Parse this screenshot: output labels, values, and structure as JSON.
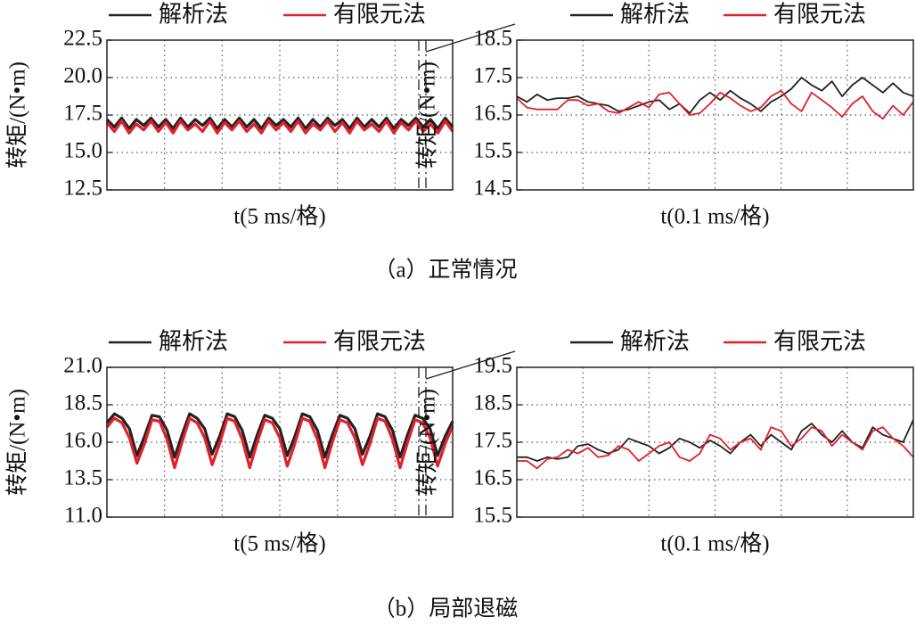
{
  "chart_data": [
    {
      "type": "line",
      "y_label": "转矩/(N•m)",
      "x_label": "t(5 ms/格)",
      "ylim": [
        12.5,
        22.5
      ],
      "yticks": [
        12.5,
        {
          "value": 15,
          "label": "15.0"
        },
        17.5,
        {
          "value": 20,
          "label": "20.0"
        },
        22.5
      ],
      "grid": true,
      "series": [
        {
          "name": "解析法",
          "color": "#222222",
          "values": [
            17.2,
            16.7,
            17.3,
            16.6,
            17.2,
            16.8,
            17.3,
            16.7,
            17.2,
            16.6,
            17.3,
            16.7,
            17.2,
            16.8,
            17.3,
            16.6,
            17.2,
            16.7,
            17.3,
            16.7,
            17.2,
            16.6,
            17.3,
            16.8,
            17.2,
            16.7,
            17.3,
            16.6,
            17.2,
            16.7,
            17.3,
            16.8,
            17.2,
            16.6,
            17.3,
            16.7,
            17.2,
            16.7,
            17.3,
            16.6,
            17.2,
            16.8,
            17.3,
            16.7,
            17.2,
            16.6,
            17.3,
            16.7
          ]
        },
        {
          "name": "有限元法",
          "color": "#e0202a",
          "values": [
            17.0,
            16.4,
            17.1,
            16.3,
            16.9,
            16.5,
            17.1,
            16.4,
            17.0,
            16.3,
            17.1,
            16.5,
            16.9,
            16.4,
            17.1,
            16.3,
            17.0,
            16.5,
            17.1,
            16.4,
            16.9,
            16.3,
            17.1,
            16.5,
            17.0,
            16.4,
            17.1,
            16.3,
            16.9,
            16.5,
            17.1,
            16.4,
            17.0,
            16.3,
            17.1,
            16.5,
            16.9,
            16.4,
            17.1,
            16.3,
            17.0,
            16.5,
            17.1,
            16.4,
            16.9,
            16.3,
            17.1,
            16.4
          ]
        }
      ]
    },
    {
      "type": "line",
      "y_label": "转矩/(N•m)",
      "x_label": "t(0.1 ms/格)",
      "ylim": [
        14.5,
        18.5
      ],
      "yticks": [
        14.5,
        15.5,
        16.5,
        17.5,
        18.5
      ],
      "grid": true,
      "series": [
        {
          "name": "解析法",
          "color": "#222222",
          "values": [
            17.0,
            16.85,
            17.05,
            16.9,
            16.95,
            16.95,
            17.0,
            16.85,
            16.8,
            16.75,
            16.6,
            16.65,
            16.75,
            16.85,
            16.9,
            16.65,
            16.8,
            16.55,
            16.9,
            17.1,
            16.9,
            17.15,
            16.95,
            16.8,
            16.6,
            16.85,
            17.0,
            17.2,
            17.5,
            17.3,
            17.15,
            17.4,
            17.0,
            17.3,
            17.5,
            17.3,
            17.1,
            17.35,
            17.1,
            17.0
          ]
        },
        {
          "name": "有限元法",
          "color": "#e0202a",
          "values": [
            16.95,
            16.7,
            16.65,
            16.65,
            16.65,
            16.9,
            16.9,
            16.75,
            16.8,
            16.6,
            16.55,
            16.7,
            16.85,
            16.7,
            17.05,
            17.1,
            16.8,
            16.5,
            16.55,
            16.8,
            17.1,
            16.95,
            16.75,
            16.6,
            16.7,
            17.0,
            17.15,
            16.8,
            16.6,
            17.1,
            16.9,
            16.7,
            16.45,
            16.8,
            17.0,
            16.6,
            16.4,
            16.75,
            16.5,
            16.85
          ]
        }
      ]
    },
    {
      "type": "line",
      "y_label": "转矩/(N•m)",
      "x_label": "t(5 ms/格)",
      "ylim": [
        11,
        21
      ],
      "yticks": [
        {
          "value": 11,
          "label": "11.0"
        },
        13.5,
        {
          "value": 16,
          "label": "16.0"
        },
        18.5,
        {
          "value": 21,
          "label": "21.0"
        }
      ],
      "grid": true,
      "series": [
        {
          "name": "解析法",
          "color": "#222222",
          "values": [
            17.3,
            17.9,
            17.6,
            16.9,
            15.1,
            16.4,
            17.8,
            17.7,
            16.8,
            15.0,
            16.5,
            17.9,
            17.6,
            16.9,
            15.2,
            16.4,
            17.9,
            17.7,
            16.8,
            15.0,
            16.5,
            17.8,
            17.6,
            16.9,
            15.1,
            16.4,
            17.9,
            17.7,
            16.8,
            15.0,
            16.5,
            17.8,
            17.6,
            16.9,
            15.2,
            16.4,
            17.9,
            17.7,
            16.8,
            15.0,
            16.5,
            17.8,
            17.6,
            16.9,
            15.1,
            16.4,
            17.4
          ]
        },
        {
          "name": "有限元法",
          "color": "#e0202a",
          "values": [
            17.0,
            17.6,
            17.3,
            16.3,
            14.6,
            15.9,
            17.5,
            17.4,
            16.2,
            14.3,
            16.0,
            17.6,
            17.3,
            16.3,
            14.5,
            15.9,
            17.6,
            17.4,
            16.2,
            14.3,
            16.0,
            17.5,
            17.3,
            16.3,
            14.4,
            15.9,
            17.6,
            17.4,
            16.2,
            14.3,
            16.0,
            17.5,
            17.3,
            16.3,
            14.5,
            15.9,
            17.6,
            17.4,
            16.2,
            14.3,
            16.0,
            17.5,
            17.3,
            16.3,
            14.4,
            15.9,
            17.1
          ]
        }
      ]
    },
    {
      "type": "line",
      "y_label": "转矩/(N•m)",
      "x_label": "t(0.1 ms/格)",
      "ylim": [
        15.5,
        19.5
      ],
      "yticks": [
        15.5,
        16.5,
        17.5,
        18.5,
        19.5
      ],
      "grid": true,
      "series": [
        {
          "name": "解析法",
          "color": "#222222",
          "values": [
            17.1,
            17.1,
            17.0,
            17.1,
            17.05,
            17.1,
            17.4,
            17.45,
            17.3,
            17.2,
            17.3,
            17.6,
            17.5,
            17.4,
            17.2,
            17.35,
            17.6,
            17.5,
            17.35,
            17.55,
            17.4,
            17.2,
            17.5,
            17.7,
            17.4,
            17.7,
            17.5,
            17.3,
            17.8,
            18.0,
            17.7,
            17.5,
            17.8,
            17.5,
            17.35,
            17.9,
            17.7,
            17.6,
            17.5,
            18.1
          ]
        },
        {
          "name": "有限元法",
          "color": "#e0202a",
          "values": [
            17.0,
            17.0,
            16.8,
            17.05,
            17.1,
            17.3,
            17.2,
            17.35,
            17.1,
            17.15,
            17.4,
            17.3,
            17.0,
            17.2,
            17.4,
            17.5,
            17.1,
            17.0,
            17.2,
            17.7,
            17.6,
            17.3,
            17.5,
            17.6,
            17.3,
            17.9,
            17.8,
            17.4,
            17.6,
            17.9,
            17.8,
            17.4,
            17.7,
            17.5,
            17.3,
            17.8,
            17.9,
            17.6,
            17.4,
            17.1
          ]
        }
      ]
    }
  ],
  "captions": [
    "（a）正常情况",
    "（b）局部退磁"
  ]
}
